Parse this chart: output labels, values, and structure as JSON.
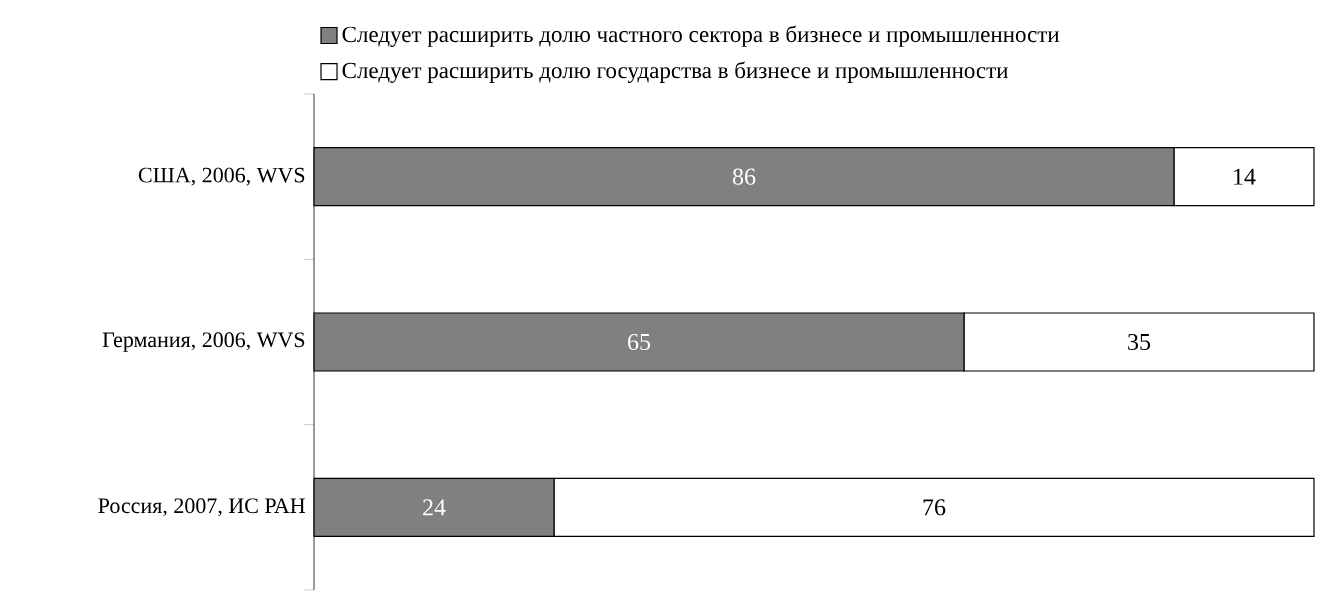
{
  "chart_data": {
    "type": "bar",
    "orientation": "horizontal",
    "stacked": true,
    "data_labels": true,
    "legend": "top",
    "categories": [
      "США, 2006, WVS",
      "Германия, 2006, WVS",
      "Россия, 2007, ИС РАН"
    ],
    "series": [
      {
        "name": "Следует расширить долю частного сектора в бизнесе и промышленности",
        "color": "#808080",
        "values": [
          86,
          65,
          24
        ]
      },
      {
        "name": "Следует расширить долю государства в бизнесе и промышленности",
        "color": "#ffffff",
        "values": [
          14,
          35,
          76
        ]
      }
    ]
  }
}
